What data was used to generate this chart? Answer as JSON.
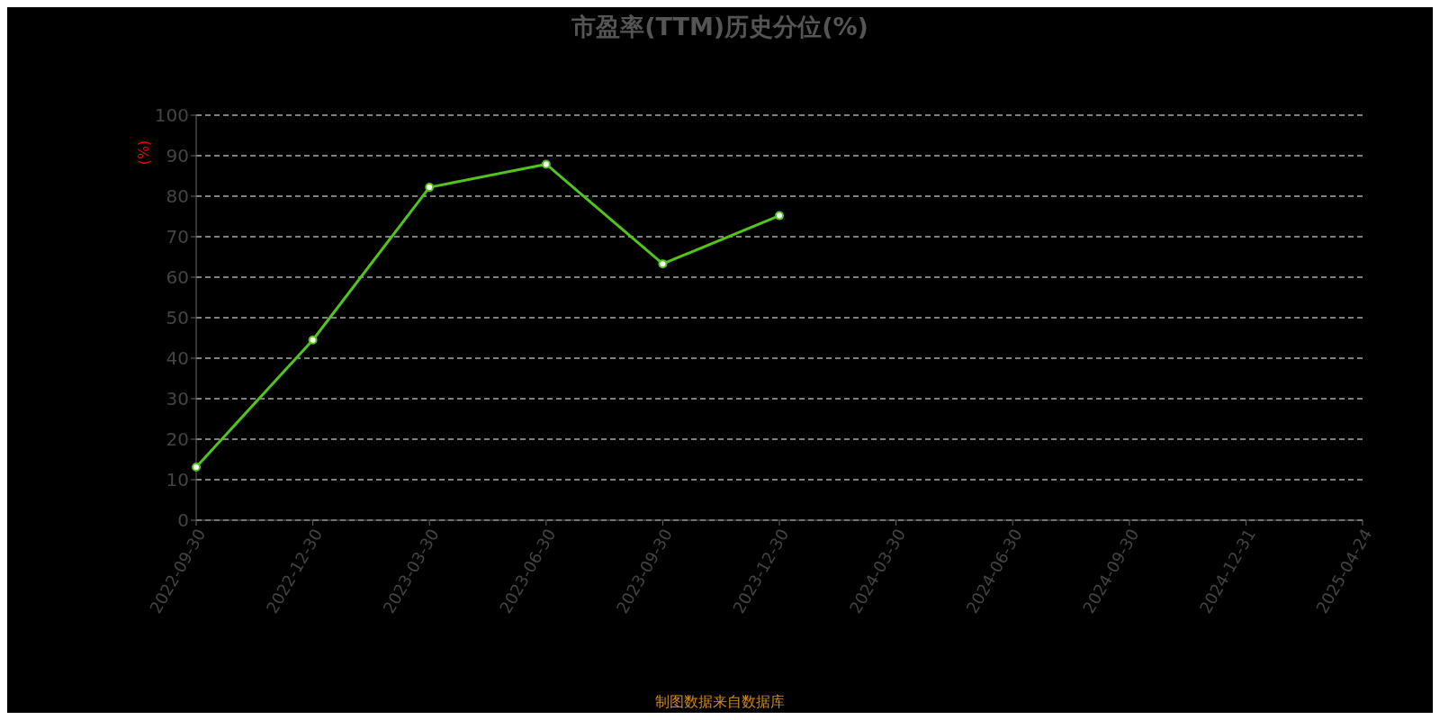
{
  "chart_data": {
    "type": "line",
    "title": "市盈率(TTM)历史分位(%)",
    "ylabel": "(%)",
    "categories": [
      "2022-09-30",
      "2022-12-30",
      "2023-03-30",
      "2023-06-30",
      "2023-09-30",
      "2023-12-30",
      "2024-03-30",
      "2024-06-30",
      "2024-09-30",
      "2024-12-31",
      "2025-04-24"
    ],
    "series": [
      {
        "color": "#52c41a",
        "values": [
          13.1,
          44.5,
          82.2,
          87.9,
          63.3,
          75.2,
          null,
          null,
          null,
          null,
          null
        ]
      }
    ],
    "ylim": [
      0,
      100
    ],
    "yticks": [
      0,
      10,
      20,
      30,
      40,
      50,
      60,
      70,
      80,
      90,
      100
    ],
    "grid": "y",
    "marker": "circle",
    "line_style": "solid",
    "legend": false,
    "annotations": [
      "制图数据来自数据库"
    ]
  }
}
